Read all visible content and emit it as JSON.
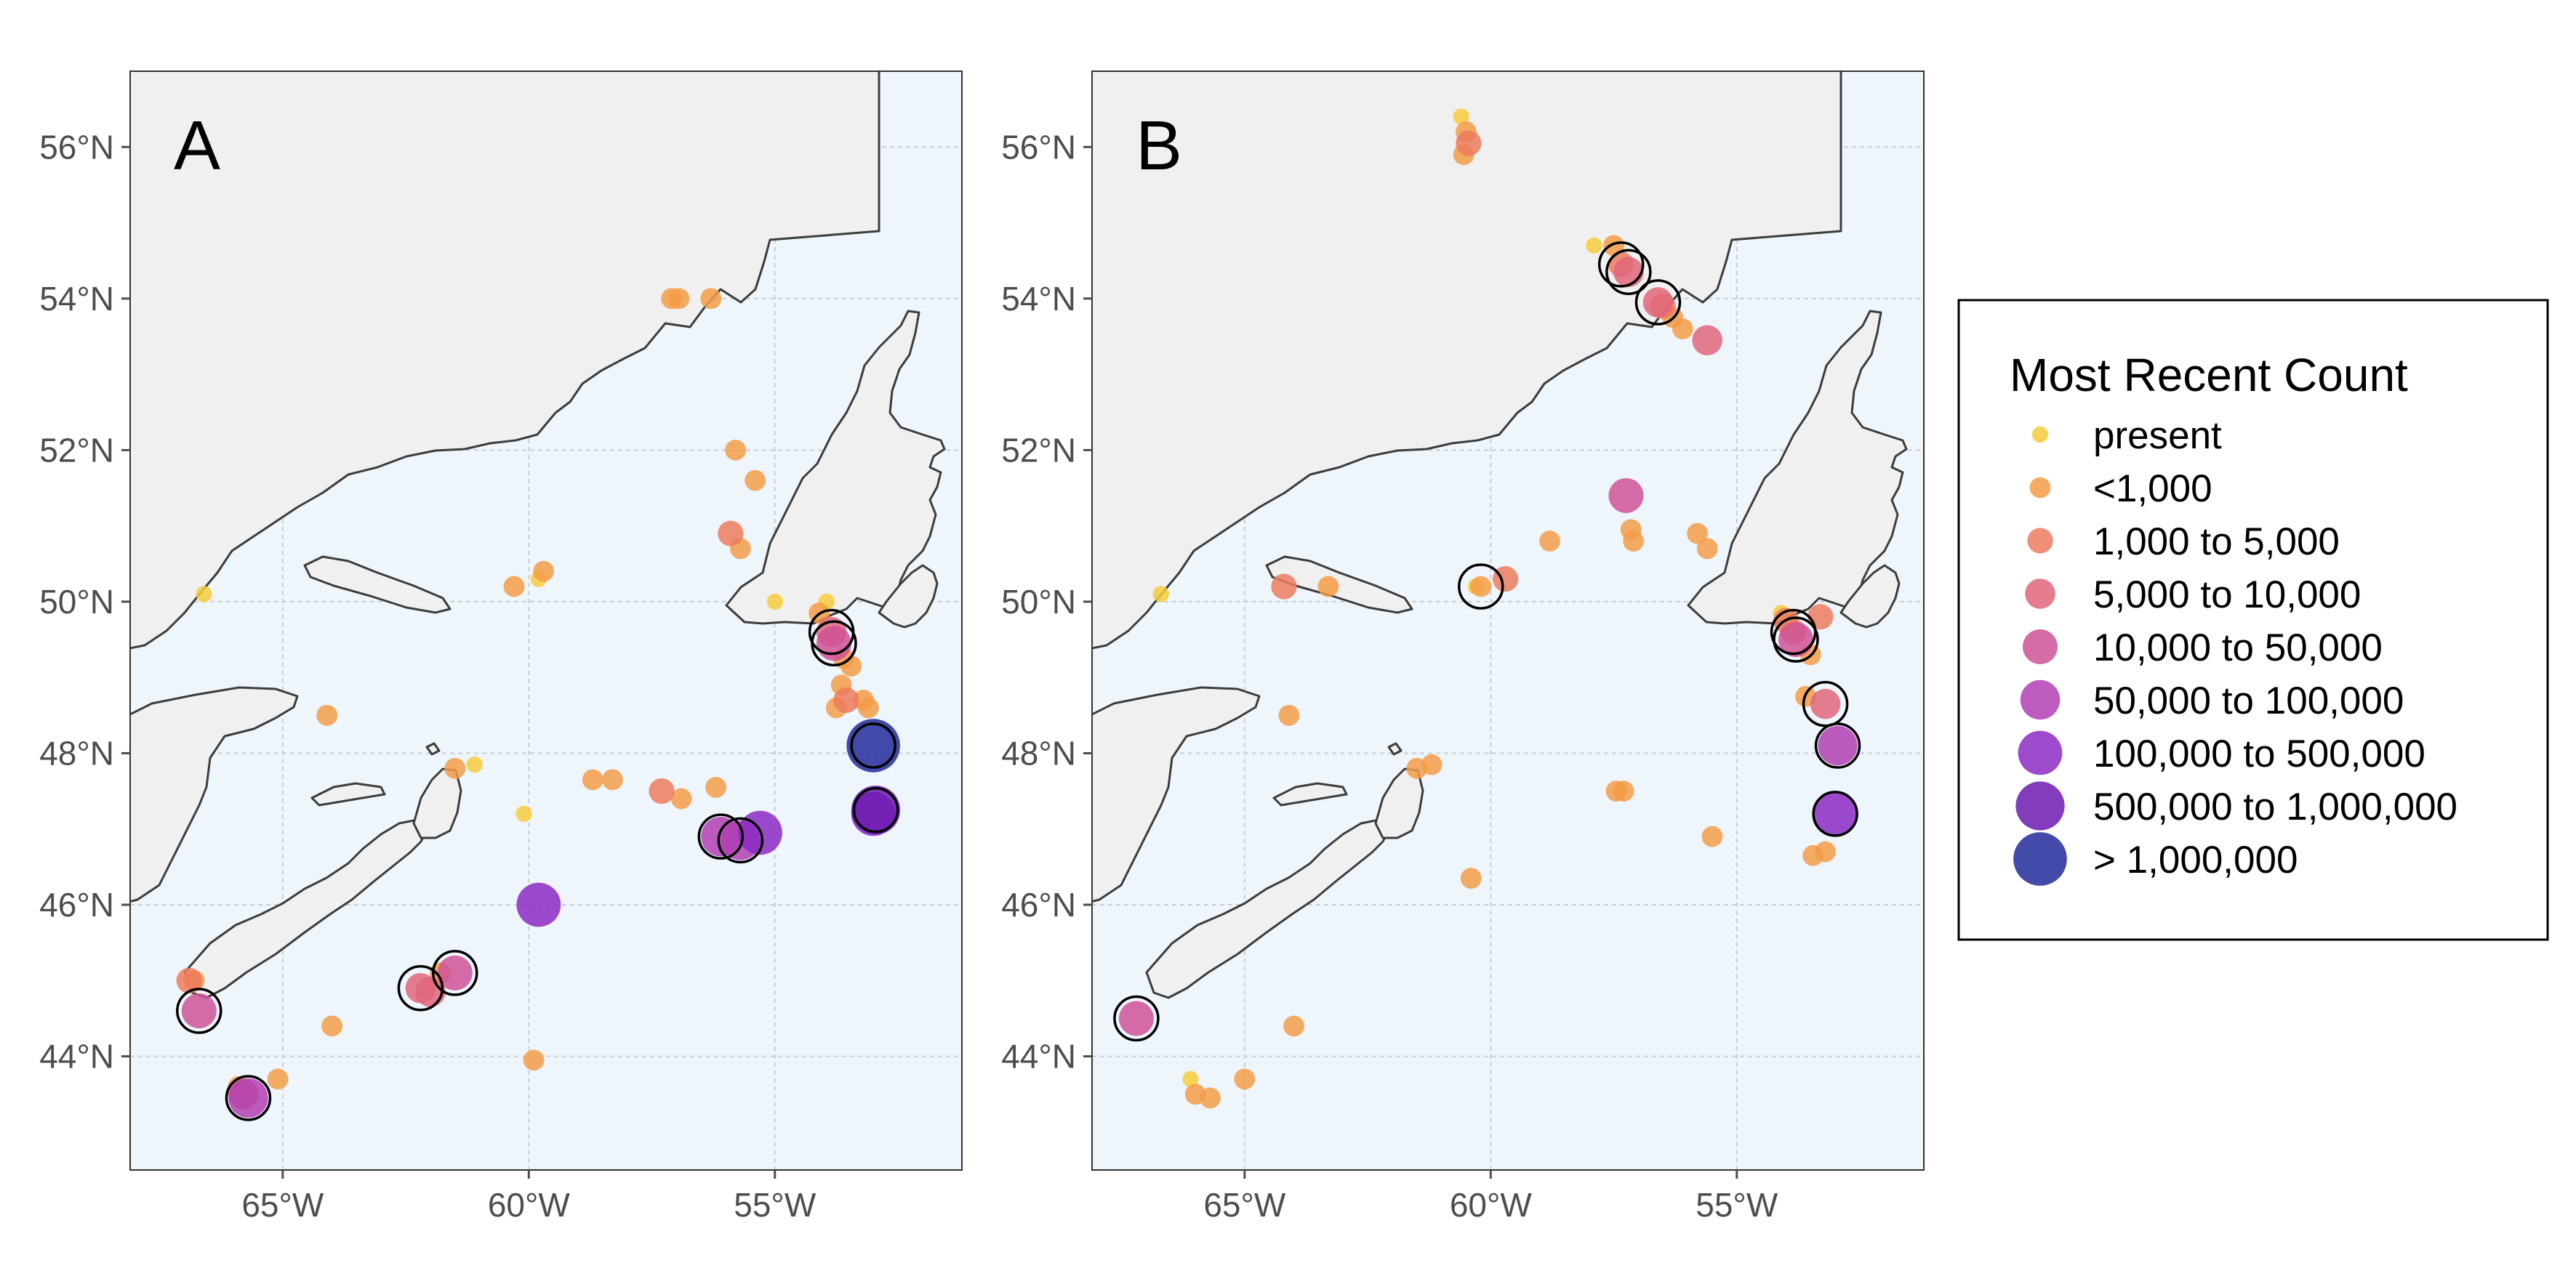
{
  "panels": [
    {
      "id": "A",
      "label": "A"
    },
    {
      "id": "B",
      "label": "B"
    }
  ],
  "axes": {
    "lat_ticks": [
      {
        "value": 56,
        "label": "56°N"
      },
      {
        "value": 54,
        "label": "54°N"
      },
      {
        "value": 52,
        "label": "52°N"
      },
      {
        "value": 50,
        "label": "50°N"
      },
      {
        "value": 48,
        "label": "48°N"
      },
      {
        "value": 46,
        "label": "46°N"
      },
      {
        "value": 44,
        "label": "44°N"
      }
    ],
    "lon_ticks": [
      {
        "value": -65,
        "label": "65°W"
      },
      {
        "value": -60,
        "label": "60°W"
      },
      {
        "value": -55,
        "label": "55°W"
      }
    ],
    "lon_range": [
      -68.1,
      -51.2
    ],
    "lat_range": [
      42.5,
      57.0
    ]
  },
  "colors": {
    "ocean": "#eef6fc",
    "land": "#f0f0f0",
    "coast": "#3c3c3c",
    "present": "#f6cc3c",
    "lt1000": "#f39c47",
    "c1000_5000": "#ec7b5d",
    "c5000_10000": "#e0667b",
    "c10000_50000": "#cf5297",
    "c50000_100000": "#b140b3",
    "c100000_500000": "#8c2ac3",
    "c500000_1000000": "#6c1ab0",
    "gt1000000": "#222a9a"
  },
  "legend": {
    "title": "Most Recent Count",
    "items": [
      {
        "label": "present",
        "color": "#f6cc3c",
        "size": 1
      },
      {
        "label": "<1,000",
        "color": "#f39c47",
        "size": 2
      },
      {
        "label": "1,000 to 5,000",
        "color": "#ec7b5d",
        "size": 3
      },
      {
        "label": "5,000 to 10,000",
        "color": "#e0667b",
        "size": 4
      },
      {
        "label": "10,000 to 50,000",
        "color": "#cf5297",
        "size": 5
      },
      {
        "label": "50,000 to 100,000",
        "color": "#b140b3",
        "size": 6
      },
      {
        "label": "100,000 to 500,000",
        "color": "#8c2ac3",
        "size": 7
      },
      {
        "label": "500,000 to 1,000,000",
        "color": "#6c1ab0",
        "size": 8
      },
      {
        "label": "> 1,000,000",
        "color": "#222a9a",
        "size": 9
      }
    ]
  },
  "chart_data": [
    {
      "type": "scatter",
      "panel": "A",
      "points": [
        {
          "lon": -66.6,
          "lat": 50.1,
          "cat": 1
        },
        {
          "lon": -64.1,
          "lat": 48.5,
          "cat": 2
        },
        {
          "lon": -61.5,
          "lat": 47.8,
          "cat": 2
        },
        {
          "lon": -61.1,
          "lat": 47.85,
          "cat": 1
        },
        {
          "lon": -60.1,
          "lat": 47.2,
          "cat": 1
        },
        {
          "lon": -59.9,
          "lat": 43.95,
          "cat": 2
        },
        {
          "lon": -59.8,
          "lat": 46.0,
          "cat": 7
        },
        {
          "lon": -60.3,
          "lat": 50.2,
          "cat": 2
        },
        {
          "lon": -59.8,
          "lat": 50.3,
          "cat": 1
        },
        {
          "lon": -59.7,
          "lat": 50.4,
          "cat": 2
        },
        {
          "lon": -57.1,
          "lat": 54.0,
          "cat": 2
        },
        {
          "lon": -56.95,
          "lat": 54.0,
          "cat": 2
        },
        {
          "lon": -56.3,
          "lat": 54.0,
          "cat": 2
        },
        {
          "lon": -55.8,
          "lat": 52.0,
          "cat": 2
        },
        {
          "lon": -55.4,
          "lat": 51.6,
          "cat": 2
        },
        {
          "lon": -55.9,
          "lat": 50.9,
          "cat": 3
        },
        {
          "lon": -55.7,
          "lat": 50.7,
          "cat": 2
        },
        {
          "lon": -55.0,
          "lat": 50.0,
          "cat": 1
        },
        {
          "lon": -54.1,
          "lat": 49.85,
          "cat": 2
        },
        {
          "lon": -53.95,
          "lat": 50.0,
          "cat": 1
        },
        {
          "lon": -53.85,
          "lat": 49.6,
          "cat": 4,
          "ring": true
        },
        {
          "lon": -53.8,
          "lat": 49.45,
          "cat": 5,
          "ring": true
        },
        {
          "lon": -53.6,
          "lat": 49.25,
          "cat": 2
        },
        {
          "lon": -53.45,
          "lat": 49.15,
          "cat": 2
        },
        {
          "lon": -53.65,
          "lat": 48.9,
          "cat": 2
        },
        {
          "lon": -53.55,
          "lat": 48.7,
          "cat": 3
        },
        {
          "lon": -53.75,
          "lat": 48.6,
          "cat": 2
        },
        {
          "lon": -53.2,
          "lat": 48.7,
          "cat": 2
        },
        {
          "lon": -53.1,
          "lat": 48.6,
          "cat": 2
        },
        {
          "lon": -53.0,
          "lat": 48.1,
          "cat": 9,
          "ring": true
        },
        {
          "lon": -52.95,
          "lat": 47.25,
          "cat": 8,
          "ring": true
        },
        {
          "lon": -53.0,
          "lat": 47.2,
          "cat": 7
        },
        {
          "lon": -58.7,
          "lat": 47.65,
          "cat": 2
        },
        {
          "lon": -58.3,
          "lat": 47.65,
          "cat": 2
        },
        {
          "lon": -57.3,
          "lat": 47.5,
          "cat": 3
        },
        {
          "lon": -56.9,
          "lat": 47.4,
          "cat": 2
        },
        {
          "lon": -56.2,
          "lat": 47.55,
          "cat": 2
        },
        {
          "lon": -56.1,
          "lat": 46.9,
          "cat": 6,
          "ring": true
        },
        {
          "lon": -55.7,
          "lat": 46.85,
          "cat": 6,
          "ring": true
        },
        {
          "lon": -55.3,
          "lat": 46.95,
          "cat": 7
        },
        {
          "lon": -61.8,
          "lat": 45.1,
          "cat": 2
        },
        {
          "lon": -61.5,
          "lat": 45.1,
          "cat": 5,
          "ring": true
        },
        {
          "lon": -62.2,
          "lat": 44.9,
          "cat": 4,
          "ring": true
        },
        {
          "lon": -62.0,
          "lat": 44.85,
          "cat": 4
        },
        {
          "lon": -66.9,
          "lat": 45.0,
          "cat": 3
        },
        {
          "lon": -66.8,
          "lat": 45.0,
          "cat": 2
        },
        {
          "lon": -66.7,
          "lat": 44.6,
          "cat": 5,
          "ring": true
        },
        {
          "lon": -64.0,
          "lat": 44.4,
          "cat": 2
        },
        {
          "lon": -65.9,
          "lat": 43.6,
          "cat": 2
        },
        {
          "lon": -65.8,
          "lat": 43.5,
          "cat": 4
        },
        {
          "lon": -65.7,
          "lat": 43.45,
          "cat": 6,
          "ring": true
        },
        {
          "lon": -65.1,
          "lat": 43.7,
          "cat": 2
        }
      ]
    },
    {
      "type": "scatter",
      "panel": "B",
      "points": [
        {
          "lon": -60.6,
          "lat": 56.4,
          "cat": 1
        },
        {
          "lon": -60.5,
          "lat": 56.2,
          "cat": 2
        },
        {
          "lon": -60.45,
          "lat": 56.05,
          "cat": 3
        },
        {
          "lon": -60.55,
          "lat": 55.9,
          "cat": 2
        },
        {
          "lon": -57.9,
          "lat": 54.7,
          "cat": 1
        },
        {
          "lon": -57.5,
          "lat": 54.7,
          "cat": 2
        },
        {
          "lon": -57.35,
          "lat": 54.45,
          "cat": 3,
          "ring": true
        },
        {
          "lon": -57.2,
          "lat": 54.35,
          "cat": 4,
          "ring": true
        },
        {
          "lon": -56.6,
          "lat": 53.95,
          "cat": 4,
          "ring": true
        },
        {
          "lon": -56.5,
          "lat": 53.9,
          "cat": 3
        },
        {
          "lon": -56.3,
          "lat": 53.75,
          "cat": 2
        },
        {
          "lon": -56.1,
          "lat": 53.6,
          "cat": 2
        },
        {
          "lon": -55.6,
          "lat": 53.45,
          "cat": 4
        },
        {
          "lon": -57.25,
          "lat": 51.4,
          "cat": 5
        },
        {
          "lon": -57.15,
          "lat": 50.95,
          "cat": 2
        },
        {
          "lon": -57.1,
          "lat": 50.8,
          "cat": 2
        },
        {
          "lon": -55.8,
          "lat": 50.9,
          "cat": 2
        },
        {
          "lon": -55.6,
          "lat": 50.7,
          "cat": 2
        },
        {
          "lon": -58.8,
          "lat": 50.8,
          "cat": 2
        },
        {
          "lon": -59.7,
          "lat": 50.3,
          "cat": 3
        },
        {
          "lon": -60.2,
          "lat": 50.2,
          "cat": 2,
          "ring": true
        },
        {
          "lon": -60.3,
          "lat": 50.2,
          "cat": 1
        },
        {
          "lon": -64.2,
          "lat": 50.2,
          "cat": 3
        },
        {
          "lon": -63.3,
          "lat": 50.2,
          "cat": 2
        },
        {
          "lon": -66.7,
          "lat": 50.1,
          "cat": 1
        },
        {
          "lon": -64.1,
          "lat": 48.5,
          "cat": 2
        },
        {
          "lon": -61.5,
          "lat": 47.8,
          "cat": 2
        },
        {
          "lon": -61.2,
          "lat": 47.85,
          "cat": 2
        },
        {
          "lon": -60.4,
          "lat": 46.35,
          "cat": 2
        },
        {
          "lon": -57.45,
          "lat": 47.5,
          "cat": 2
        },
        {
          "lon": -57.3,
          "lat": 47.5,
          "cat": 2
        },
        {
          "lon": -55.5,
          "lat": 46.9,
          "cat": 2
        },
        {
          "lon": -54.1,
          "lat": 49.85,
          "cat": 1
        },
        {
          "lon": -54.0,
          "lat": 49.75,
          "cat": 3
        },
        {
          "lon": -53.85,
          "lat": 49.6,
          "cat": 3,
          "ring": true
        },
        {
          "lon": -53.8,
          "lat": 49.5,
          "cat": 5,
          "ring": true
        },
        {
          "lon": -53.5,
          "lat": 49.3,
          "cat": 2
        },
        {
          "lon": -53.3,
          "lat": 49.8,
          "cat": 3
        },
        {
          "lon": -53.6,
          "lat": 48.75,
          "cat": 2
        },
        {
          "lon": -53.2,
          "lat": 48.65,
          "cat": 4,
          "ring": true
        },
        {
          "lon": -52.95,
          "lat": 48.1,
          "cat": 6,
          "ring": true
        },
        {
          "lon": -53.0,
          "lat": 47.2,
          "cat": 7,
          "ring": true
        },
        {
          "lon": -53.45,
          "lat": 46.65,
          "cat": 2
        },
        {
          "lon": -53.2,
          "lat": 46.7,
          "cat": 2
        },
        {
          "lon": -67.2,
          "lat": 44.5,
          "cat": 5,
          "ring": true
        },
        {
          "lon": -64.0,
          "lat": 44.4,
          "cat": 2
        },
        {
          "lon": -66.1,
          "lat": 43.7,
          "cat": 1
        },
        {
          "lon": -66.0,
          "lat": 43.5,
          "cat": 2
        },
        {
          "lon": -65.7,
          "lat": 43.45,
          "cat": 2
        },
        {
          "lon": -65.0,
          "lat": 43.7,
          "cat": 2
        }
      ]
    }
  ]
}
